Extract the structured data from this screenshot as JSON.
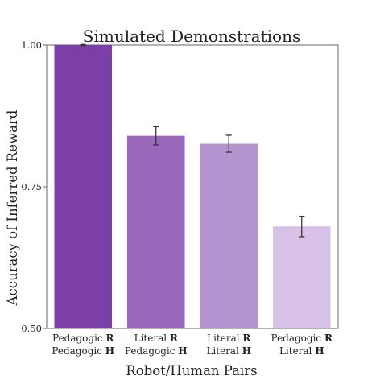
{
  "chart_data": {
    "type": "bar",
    "title": "Simulated Demonstrations",
    "xlabel": "Robot/Human Pairs",
    "ylabel": "Accuracy of Inferred Reward",
    "ylim": [
      0.5,
      1.0
    ],
    "yticks": [
      "0.50",
      "0.75",
      "1.00"
    ],
    "grid": false,
    "categories": [
      {
        "robot": "Pedagogic",
        "robot_tag": "R",
        "human": "Pedagogic",
        "human_tag": "H"
      },
      {
        "robot": "Literal",
        "robot_tag": "R",
        "human": "Pedagogic",
        "human_tag": "H"
      },
      {
        "robot": "Literal",
        "robot_tag": "R",
        "human": "Literal",
        "human_tag": "H"
      },
      {
        "robot": "Pedagogic",
        "robot_tag": "R",
        "human": "Literal",
        "human_tag": "H"
      }
    ],
    "values": [
      1.0,
      0.84,
      0.826,
      0.68
    ],
    "errors": [
      0.001,
      0.016,
      0.015,
      0.018
    ],
    "colors": [
      "#7b3fa6",
      "#9a68bb",
      "#b494cf",
      "#d7c1e6"
    ],
    "error_color": "#333333"
  }
}
